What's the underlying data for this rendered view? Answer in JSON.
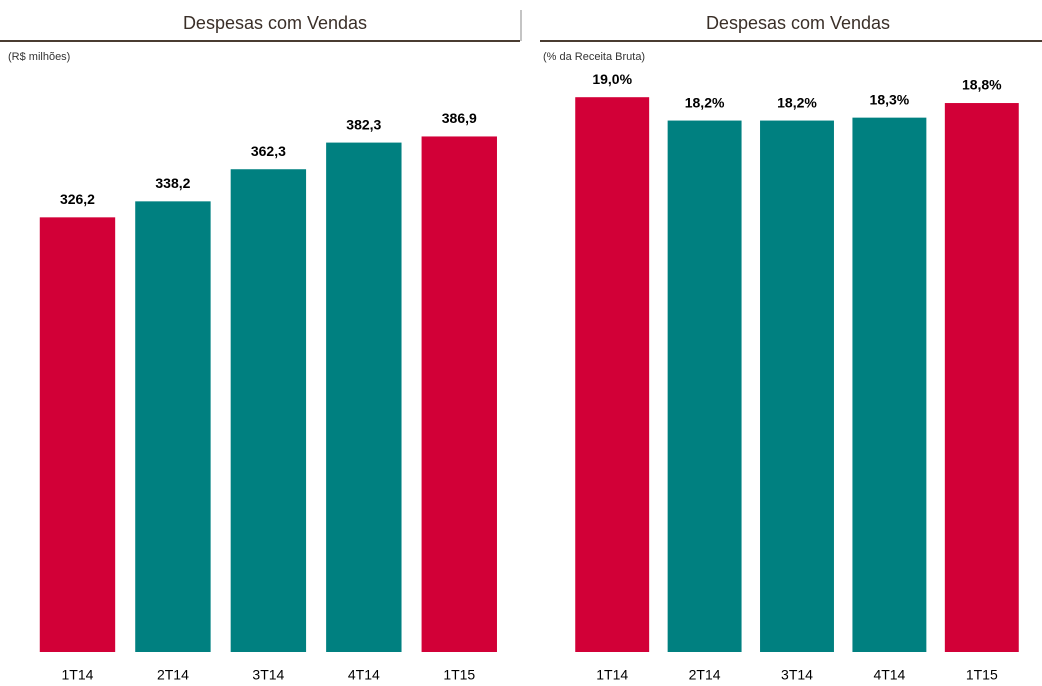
{
  "chart_data": [
    {
      "type": "bar",
      "title": "Despesas com Vendas",
      "subtitle": "(R$ milhões)",
      "categories": [
        "1T14",
        "2T14",
        "3T14",
        "4T14",
        "1T15"
      ],
      "values": [
        326.2,
        338.2,
        362.3,
        382.3,
        386.9
      ],
      "value_labels": [
        "326,2",
        "338,2",
        "362,3",
        "382,3",
        "386,9"
      ],
      "colors": [
        "#d20037",
        "#008080",
        "#008080",
        "#008080",
        "#d20037"
      ],
      "ylim": [
        0,
        400
      ]
    },
    {
      "type": "bar",
      "title": "Despesas com Vendas",
      "subtitle": "(% da Receita Bruta)",
      "categories": [
        "1T14",
        "2T14",
        "3T14",
        "4T14",
        "1T15"
      ],
      "values": [
        19.0,
        18.2,
        18.2,
        18.3,
        18.8
      ],
      "value_labels": [
        "19,0%",
        "18,2%",
        "18,2%",
        "18,3%",
        "18,8%"
      ],
      "colors": [
        "#d20037",
        "#008080",
        "#008080",
        "#008080",
        "#d20037"
      ],
      "ylim": [
        0,
        20
      ]
    }
  ]
}
